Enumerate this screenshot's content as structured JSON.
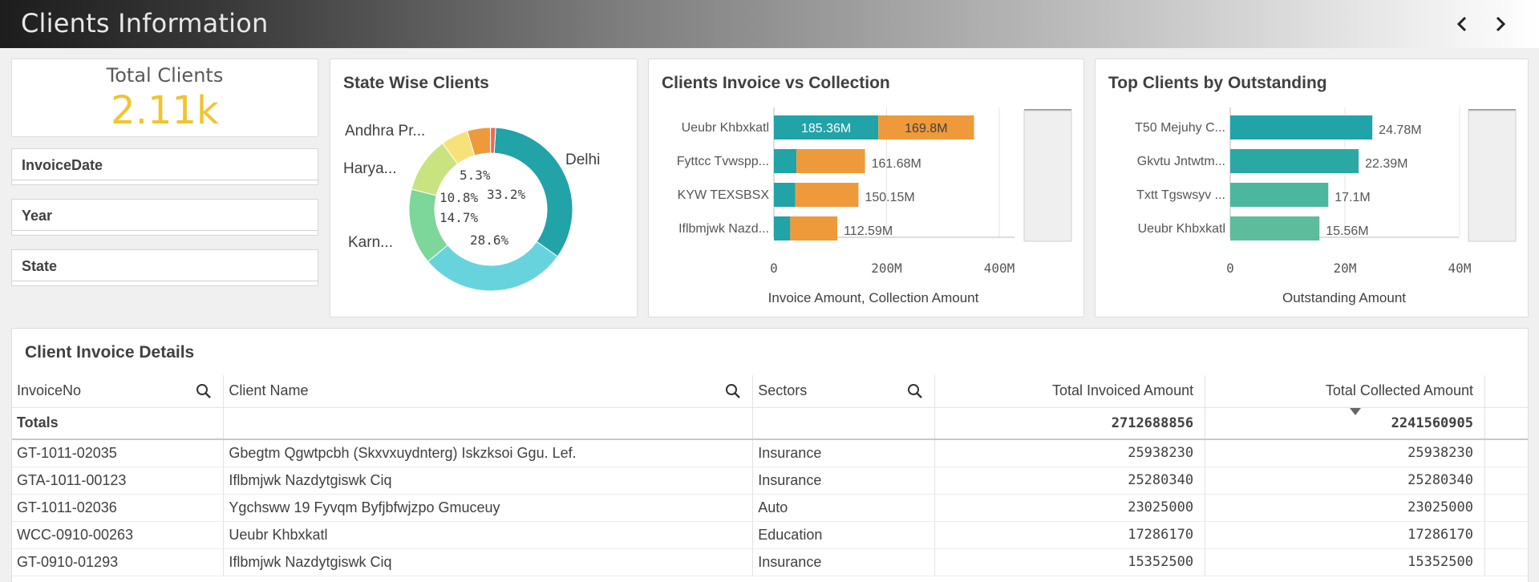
{
  "header": {
    "title": "Clients Information"
  },
  "colors": {
    "teal": "#21a3a8",
    "orange": "#ee9a3a",
    "green": "#5cbc9b",
    "kpi_yellow": "#f0c52e"
  },
  "kpi": {
    "label": "Total Clients",
    "value": "2.11k"
  },
  "filters": [
    "InvoiceDate",
    "Year",
    "State"
  ],
  "state_chart": {
    "title": "State Wise Clients",
    "labels": {
      "delhi": "Delhi",
      "andhra": "Andhra Pr...",
      "harya": "Harya...",
      "karn": "Karn..."
    },
    "pcts": {
      "p1": "5.3%",
      "p2": "10.8%",
      "p3": "33.2%",
      "p4": "14.7%",
      "p5": "28.6%"
    }
  },
  "chart_data": [
    {
      "type": "pie",
      "title": "State Wise Clients",
      "categories": [
        "Delhi",
        "",
        "Karn...",
        "Harya...",
        "Andhra Pr...",
        "",
        ""
      ],
      "values": [
        33.2,
        28.6,
        14.7,
        10.8,
        5.3,
        4.5,
        1.0
      ]
    },
    {
      "type": "bar",
      "title": "Clients Invoice vs Collection",
      "xlabel": "Invoice Amount, Collection Amount",
      "categories": [
        "Ueubr Khbxkatl",
        "Fyttcc Tvwspp...",
        "KYW TEXSBSX",
        "Iflbmjwk Nazd..."
      ],
      "series": [
        {
          "values": [
            185.36,
            40,
            38,
            29
          ]
        },
        {
          "values": [
            169.8,
            121.68,
            112.15,
            83.59
          ]
        }
      ],
      "totals": [
        355.16,
        161.68,
        150.15,
        112.59
      ],
      "labels": [
        "185.36M",
        "169.8M",
        "161.68M",
        "150.15M",
        "112.59M"
      ],
      "xticks": [
        "0",
        "200M",
        "400M"
      ],
      "xlim": [
        0,
        450
      ]
    },
    {
      "type": "bar",
      "title": "Top Clients by Outstanding",
      "xlabel": "Outstanding Amount",
      "categories": [
        "T50 Mejuhy C...",
        "Gkvtu Jntwtm...",
        "Txtt Tgswsyv ...",
        "Ueubr Khbxkatl"
      ],
      "values": [
        24.78,
        22.39,
        17.1,
        15.56
      ],
      "labels": [
        "24.78M",
        "22.39M",
        "17.1M",
        "15.56M"
      ],
      "xticks": [
        "0",
        "20M",
        "40M"
      ],
      "xlim": [
        0,
        45
      ]
    }
  ],
  "table": {
    "title": "Client Invoice Details",
    "columns": [
      "InvoiceNo",
      "Client Name",
      "Sectors",
      "Total Invoiced Amount",
      "Total Collected Amount"
    ],
    "totals_label": "Totals",
    "totals": {
      "invoiced": "2712688856",
      "collected": "2241560905"
    },
    "rows": [
      [
        "GT-1011-02035",
        "Gbegtm Qgwtpcbh (Skxvxuydnterg) Iskzksoi Ggu. Lef.",
        "Insurance",
        "25938230",
        "25938230"
      ],
      [
        "GTA-1011-00123",
        "Iflbmjwk Nazdytgiswk Ciq",
        "Insurance",
        "25280340",
        "25280340"
      ],
      [
        "GT-1011-02036",
        "Ygchsww 19 Fyvqm Byfjbfwjzpo Gmuceuy",
        "Auto",
        "23025000",
        "23025000"
      ],
      [
        "WCC-0910-00263",
        "Ueubr Khbxkatl",
        "Education",
        "17286170",
        "17286170"
      ],
      [
        "GT-0910-01293",
        "Iflbmjwk Nazdytgiswk Ciq",
        "Insurance",
        "15352500",
        "15352500"
      ]
    ]
  }
}
